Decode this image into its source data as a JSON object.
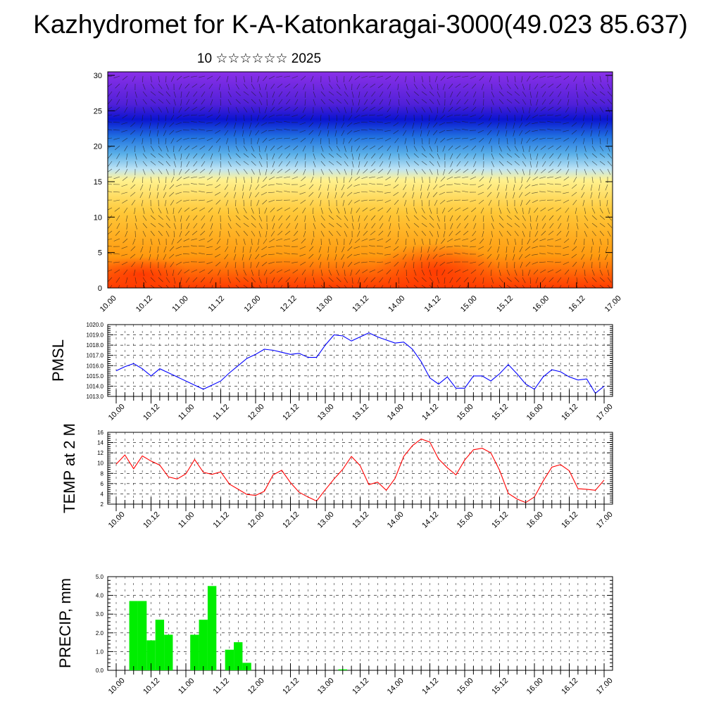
{
  "title": "Kazhydromet for K-A-Katonkaragai-3000(49.023 85.637)",
  "subtitle": "10 ☆☆☆☆☆☆ 2025",
  "time_ticks": [
    "10.00",
    "10.12",
    "11.00",
    "11.12",
    "12.00",
    "12.12",
    "13.00",
    "13.12",
    "14.00",
    "14.12",
    "15.00",
    "15.12",
    "16.00",
    "16.12",
    "17.00"
  ],
  "colors": {
    "pmsl": "#0000ff",
    "temp": "#ff0000",
    "precip": "#00ee00"
  },
  "chart_data": [
    {
      "type": "heatmap",
      "title": "",
      "ylabel": "",
      "ylim": [
        0,
        30
      ],
      "yticks": [
        "0",
        "5",
        "10",
        "15",
        "20",
        "25",
        "30"
      ],
      "x": [
        "10.00",
        "10.12",
        "11.00",
        "11.12",
        "12.00",
        "12.12",
        "13.00",
        "13.12",
        "14.00",
        "14.12",
        "15.00",
        "15.12",
        "16.00",
        "16.12",
        "17.00"
      ],
      "colormap": [
        "#ff4000",
        "#ffb000",
        "#fff080",
        "#aad8f0",
        "#2060e0",
        "#1010c0",
        "#8030e0"
      ]
    },
    {
      "type": "line",
      "ylabel": "PMSL",
      "ylim": [
        1013,
        1020
      ],
      "yticks": [
        "1013.0",
        "1014.0",
        "1015.0",
        "1016.0",
        "1017.0",
        "1018.0",
        "1019.0",
        "1020.0"
      ],
      "series": [
        {
          "values": [
            1015.5,
            1015.9,
            1016.2,
            1015.7,
            1015.0,
            1015.7,
            1015.3,
            1014.9,
            1014.5,
            1014.1,
            1013.7,
            1014.1,
            1014.5,
            1015.3,
            1016.0,
            1016.7,
            1017.1,
            1017.6,
            1017.5,
            1017.3,
            1017.1,
            1017.2,
            1016.8,
            1016.8,
            1018.0,
            1019.0,
            1018.9,
            1018.4,
            1018.8,
            1019.2,
            1018.8,
            1018.5,
            1018.2,
            1018.3,
            1017.6,
            1016.4,
            1014.8,
            1014.2,
            1014.9,
            1013.8,
            1013.8,
            1015.0,
            1015.0,
            1014.5,
            1015.2,
            1016.1,
            1015.2,
            1014.2,
            1013.7,
            1014.9,
            1015.6,
            1015.4,
            1014.9,
            1014.6,
            1014.7,
            1013.3,
            1014.0
          ]
        }
      ]
    },
    {
      "type": "line",
      "ylabel": "TEMP at 2 M",
      "ylim": [
        2,
        16
      ],
      "yticks": [
        "2",
        "4",
        "6",
        "8",
        "10",
        "12",
        "14",
        "16"
      ],
      "series": [
        {
          "values": [
            9.8,
            11.6,
            8.9,
            11.4,
            10.4,
            9.6,
            7.3,
            6.9,
            7.9,
            10.7,
            8.2,
            7.8,
            8.3,
            5.9,
            4.9,
            3.9,
            3.7,
            4.5,
            7.7,
            8.6,
            6.2,
            4.3,
            3.4,
            2.6,
            4.8,
            6.9,
            8.8,
            11.3,
            9.5,
            5.8,
            6.3,
            4.7,
            7.0,
            11.3,
            13.4,
            14.7,
            14.1,
            10.8,
            9.1,
            7.7,
            10.6,
            12.6,
            12.9,
            12.0,
            8.6,
            4.1,
            3.0,
            2.3,
            3.4,
            6.5,
            9.2,
            9.7,
            8.5,
            5.0,
            4.9,
            4.7,
            6.7
          ]
        }
      ]
    },
    {
      "type": "bar",
      "ylabel": "PRECIP, mm",
      "ylim": [
        0,
        5
      ],
      "yticks": [
        "0.0",
        "1.0",
        "2.0",
        "3.0",
        "4.0",
        "5.0"
      ],
      "values": [
        0,
        0,
        3.7,
        3.7,
        1.6,
        2.7,
        1.9,
        0,
        0,
        1.9,
        2.7,
        4.5,
        0,
        1.1,
        1.5,
        0.4,
        0,
        0,
        0,
        0,
        0,
        0,
        0,
        0,
        0,
        0,
        0.05,
        0,
        0,
        0,
        0,
        0,
        0,
        0,
        0,
        0,
        0,
        0,
        0,
        0,
        0,
        0,
        0,
        0,
        0,
        0,
        0,
        0,
        0,
        0,
        0,
        0,
        0,
        0,
        0,
        0,
        0
      ]
    }
  ]
}
